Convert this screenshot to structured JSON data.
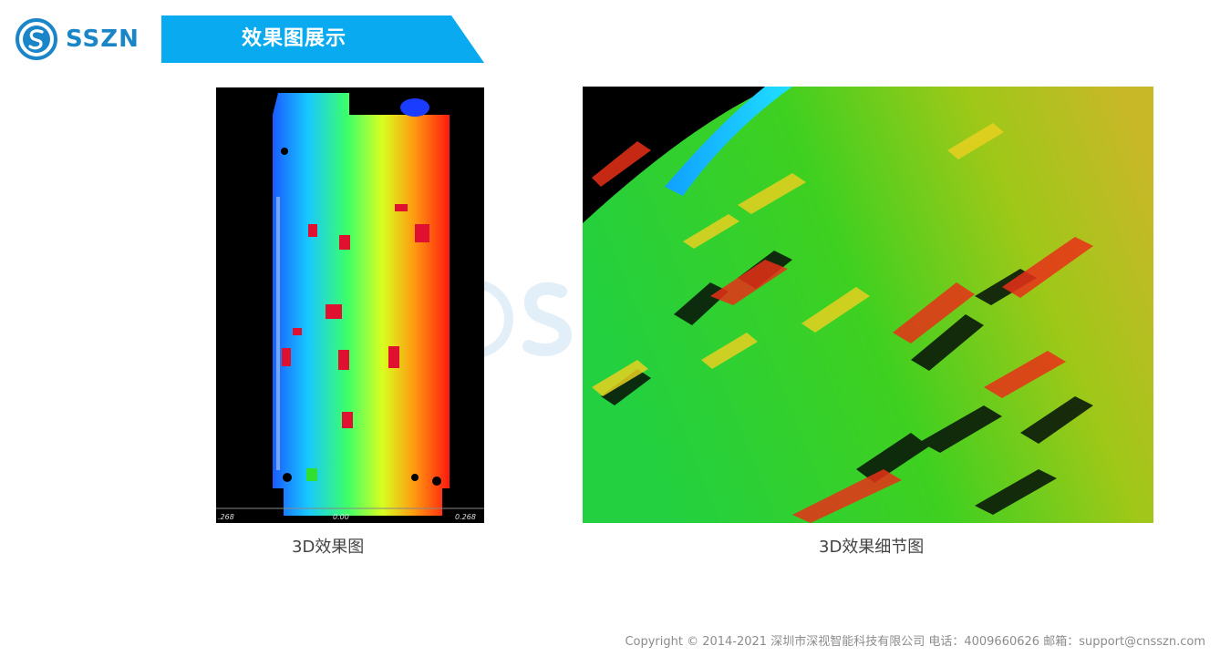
{
  "logo": {
    "text": "SSZN"
  },
  "header": {
    "title": "效果图展示"
  },
  "images": [
    {
      "caption": "3D效果图",
      "scale_left": ".268",
      "scale_center": "0.00",
      "scale_right": "0.268"
    },
    {
      "caption": "3D效果细节图"
    }
  ],
  "footer": {
    "copyright": "Copyright © 2014-2021 深圳市深视智能科技有限公司  电话：4009660626  邮箱：support@cnsszn.com"
  }
}
